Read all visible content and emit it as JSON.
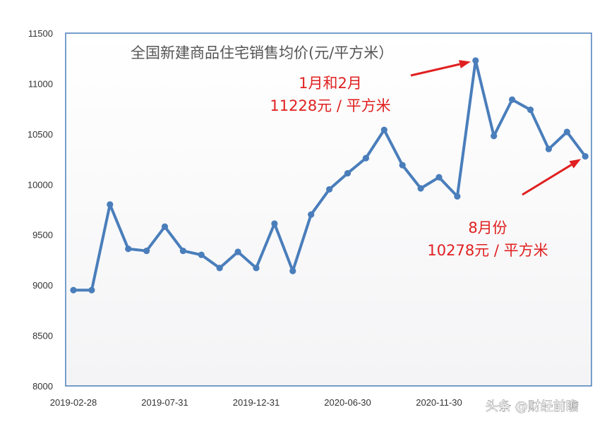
{
  "chart_data": {
    "type": "line",
    "title": "全国新建商品住宅销售均价(元/平方米）",
    "xlabel": "",
    "ylabel": "",
    "ylim": [
      8000,
      11500
    ],
    "yticks": [
      8000,
      8500,
      9000,
      9500,
      10000,
      10500,
      11000,
      11500
    ],
    "xtick_labels": [
      "2019-02-28",
      "2019-07-31",
      "2019-12-31",
      "2020-06-30",
      "2020-11-30"
    ],
    "grid": false,
    "colors": {
      "line": "#4a7ebb",
      "axis": "#4a7ebb",
      "annotation": "#e02020"
    },
    "series": [
      {
        "values": [
          8950,
          8950,
          9800,
          9360,
          9340,
          9580,
          9340,
          9300,
          9170,
          9330,
          9170,
          9610,
          9140,
          9700,
          9950,
          10110,
          10260,
          10540,
          10190,
          9960,
          10070,
          9880,
          11228,
          10480,
          10840,
          10740,
          10350,
          10520,
          10278
        ]
      }
    ],
    "annotations": [
      {
        "lines": [
          "1月和2月",
          "11228元 / 平方米"
        ],
        "points_to": 11228
      },
      {
        "lines": [
          "8月份",
          "10278元 / 平方米"
        ],
        "points_to": 10278
      }
    ]
  },
  "watermark": "头条 @财经前瞻"
}
